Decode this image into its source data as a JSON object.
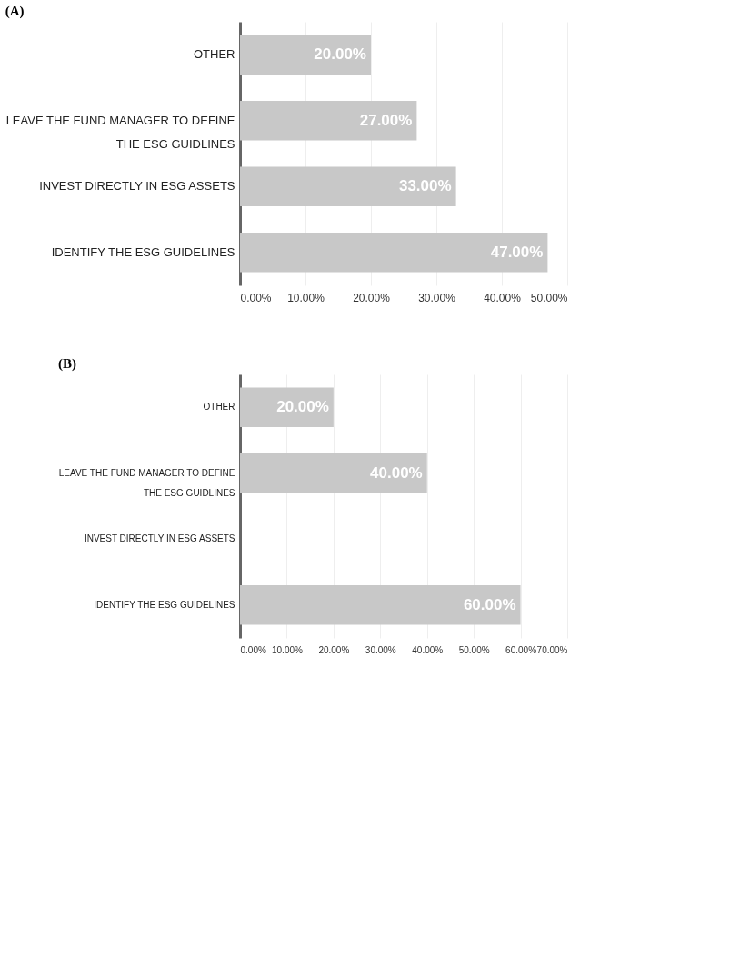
{
  "chart_data": [
    {
      "type": "bar",
      "title": "(A)",
      "orientation": "horizontal",
      "categories": [
        "OTHER",
        "LEAVE THE FUND MANAGER TO DEFINE THE ESG GUIDLINES",
        "INVEST DIRECTLY IN ESG ASSETS",
        "IDENTIFY THE ESG GUIDELINES"
      ],
      "values": [
        20,
        27,
        33,
        47
      ],
      "color": "#c8c8c8",
      "value_labels": [
        "20.00%",
        "27.00%",
        "33.00%",
        "47.00%"
      ],
      "xlim": [
        0,
        50
      ],
      "xticks": [
        {
          "value": 0,
          "label": "0.00%"
        },
        {
          "value": 10,
          "label": "10.00%"
        },
        {
          "value": 20,
          "label": "20.00%"
        },
        {
          "value": 30,
          "label": "30.00%"
        },
        {
          "value": 40,
          "label": "40.00%"
        },
        {
          "value": 50,
          "label": "50.00%"
        }
      ],
      "grid": "x"
    },
    {
      "type": "bar",
      "title": "(B)",
      "orientation": "horizontal",
      "categories": [
        "OTHER",
        "LEAVE THE FUND MANAGER TO DEFINE THE ESG GUIDLINES",
        "INVEST DIRECTLY IN ESG ASSETS",
        "IDENTIFY THE ESG GUIDELINES"
      ],
      "values": [
        20,
        40,
        null,
        60
      ],
      "color": "#c8c8c8",
      "value_labels": [
        "20.00%",
        "40.00%",
        null,
        "60.00%"
      ],
      "xlim": [
        0,
        70
      ],
      "xticks": [
        {
          "value": 0,
          "label": "0.00%"
        },
        {
          "value": 10,
          "label": "10.00%"
        },
        {
          "value": 20,
          "label": "20.00%"
        },
        {
          "value": 30,
          "label": "30.00%"
        },
        {
          "value": 40,
          "label": "40.00%"
        },
        {
          "value": 50,
          "label": "50.00%"
        },
        {
          "value": 60,
          "label": "60.00%"
        },
        {
          "value": 70,
          "label": "70.00%"
        }
      ],
      "grid": "x"
    }
  ]
}
